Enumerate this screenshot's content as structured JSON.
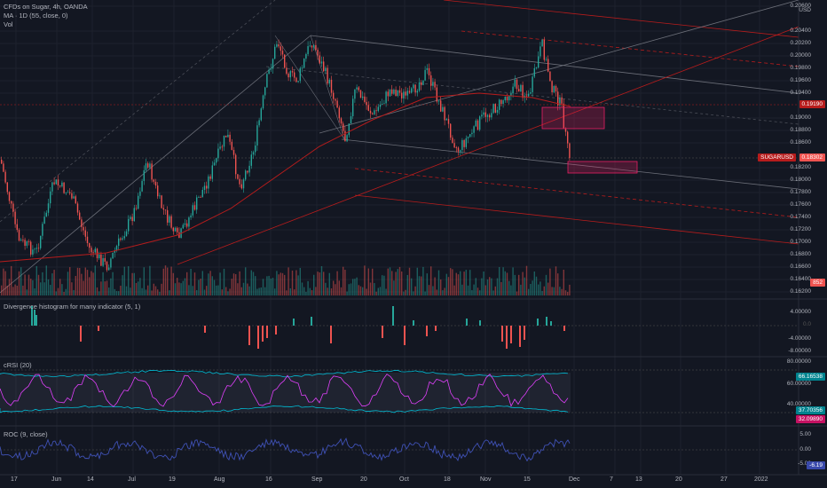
{
  "header": {
    "symbol_line": "CFDs on Sugar, 4h, OANDA",
    "ma_line": "MA · 1D (55, close, 0)",
    "vol_label": "Vol"
  },
  "price_axis": {
    "currency": "USD",
    "labels": [
      "0.20600",
      "0.20400",
      "0.20200",
      "0.20000",
      "0.19800",
      "0.19600",
      "0.19400",
      "0.19000",
      "0.18800",
      "0.18600",
      "0.18200",
      "0.18000",
      "0.17800",
      "0.17600",
      "0.17400",
      "0.17200",
      "0.17000",
      "0.16800",
      "0.16600",
      "0.16400",
      "0.16200"
    ],
    "tag_red": "0.19190",
    "tag_symbol": "SUGARUSD",
    "tag_last": "0.18302",
    "tag_vol": "852"
  },
  "panes": {
    "divergence": {
      "title": "Divergence histogram for many indicator (5, 1)",
      "ticks": [
        "4.00000",
        "-4.00000",
        "-8.00000"
      ],
      "zero_label": "0.0"
    },
    "crsi": {
      "title": "cRSI (20)",
      "ticks": [
        "80.00000",
        "60.00000",
        "40.00000"
      ],
      "tag_upper": "66.16538",
      "tag_lower": "37.70356",
      "tag_value": "32.09890"
    },
    "roc": {
      "title": "ROC (9, close)",
      "ticks": [
        "5.00",
        "0.00",
        "-5.00"
      ],
      "tag_value": "-6.19"
    }
  },
  "time_axis": {
    "labels": [
      "17",
      "Jun",
      "14",
      "Jul",
      "19",
      "Aug",
      "16",
      "Sep",
      "20",
      "Oct",
      "18",
      "Nov",
      "15",
      "Dec",
      "7",
      "13",
      "20",
      "27",
      "2022"
    ]
  },
  "colors": {
    "background": "#131722",
    "up": "#26a69a",
    "down": "#ef5350",
    "channel_red": "#b71c1c",
    "zone": "#e91e63",
    "crsi_line": "#e040fb",
    "crsi_band": "#00bcd4",
    "roc_line": "#3f51b5"
  }
}
